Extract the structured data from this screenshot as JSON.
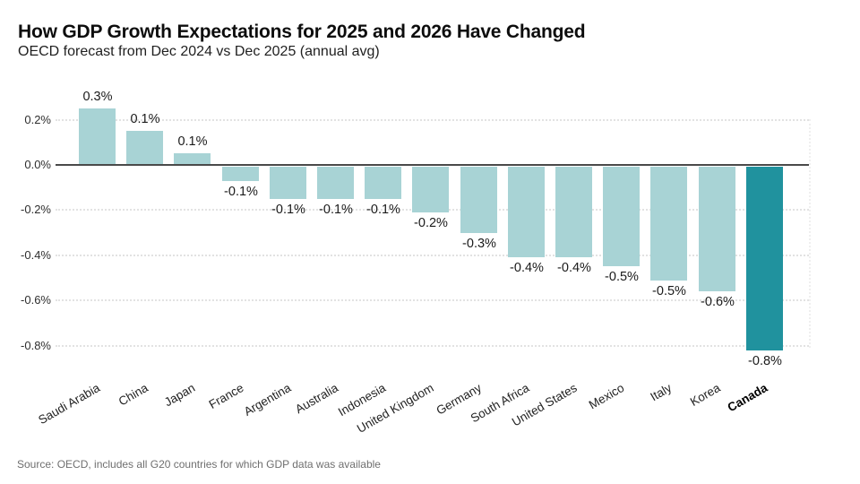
{
  "header": {
    "title": "How GDP Growth Expectations for 2025 and 2026 Have Changed",
    "subtitle": "OECD forecast from Dec 2024 vs Dec 2025 (annual avg)"
  },
  "source": {
    "text": "Source: OECD, includes all G20 countries for which GDP data was available"
  },
  "colors": {
    "bar": "#a8d3d5",
    "bar_emphasis": "#20929e",
    "zero_line": "#4a4a4a",
    "gridline": "#e2e2e2",
    "value_label_text": "#1a1a1a",
    "axis_text": "#2e2e2e",
    "source_text": "#6f6f6f",
    "background": "#ffffff"
  },
  "chart_data": {
    "type": "bar",
    "title": "How GDP Growth Expectations for 2025 and 2026 Have Changed",
    "subtitle": "OECD forecast from Dec 2024 vs Dec 2025 (annual avg)",
    "unit": "percentage points",
    "categories": [
      "Saudi Arabia",
      "China",
      "Japan",
      "France",
      "Argentina",
      "Australia",
      "Indonesia",
      "United Kingdom",
      "Germany",
      "South Africa",
      "United States",
      "Mexico",
      "Italy",
      "Korea",
      "Canada"
    ],
    "values": [
      0.25,
      0.15,
      0.05,
      -0.07,
      -0.15,
      -0.15,
      -0.15,
      -0.21,
      -0.3,
      -0.41,
      -0.41,
      -0.45,
      -0.51,
      -0.56,
      -0.82
    ],
    "data_labels": [
      "0.3%",
      "0.1%",
      "0.1%",
      "-0.1%",
      "-0.1%",
      "-0.1%",
      "-0.1%",
      "-0.2%",
      "-0.3%",
      "-0.4%",
      "-0.4%",
      "-0.5%",
      "-0.5%",
      "-0.6%",
      "-0.8%"
    ],
    "emphasized_category": "Canada",
    "yticks": [
      {
        "label": "0.2%",
        "value": 0.2
      },
      {
        "label": "0.0%",
        "value": 0.0
      },
      {
        "label": "-0.2%",
        "value": -0.2
      },
      {
        "label": "-0.4%",
        "value": -0.4
      },
      {
        "label": "-0.6%",
        "value": -0.6
      },
      {
        "label": "-0.8%",
        "value": -0.8
      }
    ],
    "ylim": [
      -0.9,
      0.35
    ],
    "xlabel": "",
    "ylabel": "",
    "grid": "horizontal-dotted",
    "legend": "none",
    "x_tick_rotation_deg": -30
  }
}
